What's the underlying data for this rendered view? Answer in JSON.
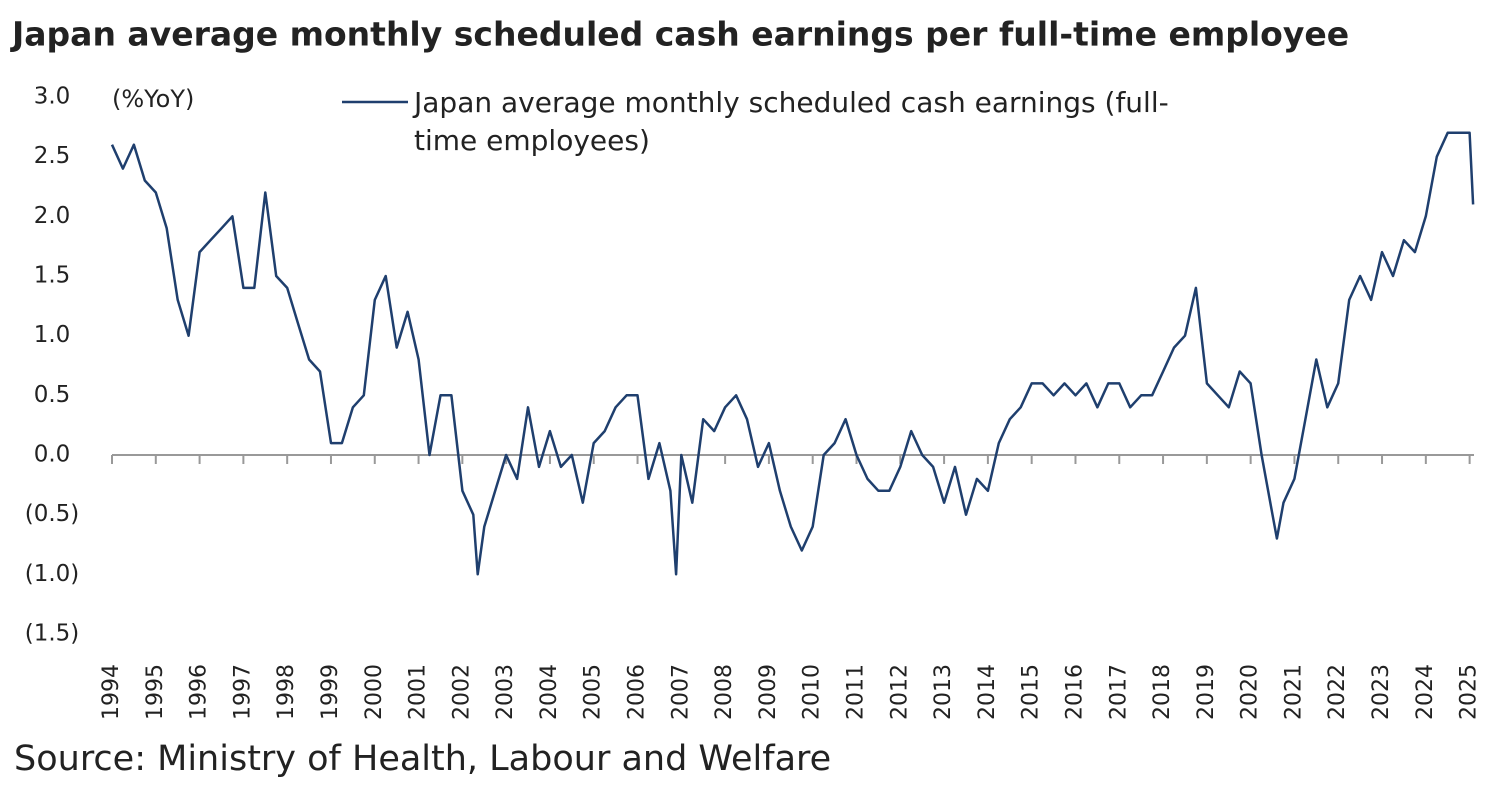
{
  "chart_data": {
    "type": "line",
    "title": "Japan average monthly scheduled cash earnings per full-time employee",
    "y_label": "(%YoY)",
    "source": "Source: Ministry of Health, Labour and Welfare",
    "x": [
      1994.0,
      1994.25,
      1994.5,
      1994.75,
      1995.0,
      1995.25,
      1995.5,
      1995.75,
      1996.0,
      1996.25,
      1996.5,
      1996.75,
      1997.0,
      1997.25,
      1997.5,
      1997.75,
      1998.0,
      1998.25,
      1998.5,
      1998.75,
      1999.0,
      1999.25,
      1999.5,
      1999.75,
      2000.0,
      2000.25,
      2000.5,
      2000.75,
      2001.0,
      2001.25,
      2001.5,
      2001.75,
      2002.0,
      2002.25,
      2002.35,
      2002.5,
      2002.75,
      2003.0,
      2003.25,
      2003.5,
      2003.75,
      2004.0,
      2004.25,
      2004.5,
      2004.75,
      2005.0,
      2005.25,
      2005.5,
      2005.75,
      2006.0,
      2006.25,
      2006.5,
      2006.75,
      2006.88,
      2007.0,
      2007.25,
      2007.5,
      2007.75,
      2008.0,
      2008.25,
      2008.5,
      2008.75,
      2009.0,
      2009.25,
      2009.5,
      2009.75,
      2010.0,
      2010.25,
      2010.5,
      2010.75,
      2011.0,
      2011.25,
      2011.5,
      2011.75,
      2012.0,
      2012.25,
      2012.5,
      2012.75,
      2013.0,
      2013.25,
      2013.5,
      2013.75,
      2014.0,
      2014.25,
      2014.5,
      2014.75,
      2015.0,
      2015.25,
      2015.5,
      2015.75,
      2016.0,
      2016.25,
      2016.5,
      2016.75,
      2017.0,
      2017.25,
      2017.5,
      2017.75,
      2018.0,
      2018.25,
      2018.5,
      2018.75,
      2019.0,
      2019.25,
      2019.5,
      2019.75,
      2020.0,
      2020.25,
      2020.5,
      2020.6,
      2020.75,
      2021.0,
      2021.25,
      2021.5,
      2021.75,
      2022.0,
      2022.25,
      2022.5,
      2022.75,
      2023.0,
      2023.25,
      2023.5,
      2023.75,
      2024.0,
      2024.25,
      2024.5,
      2024.75,
      2025.0,
      2025.08
    ],
    "series": [
      {
        "name": "Japan average monthly scheduled cash earnings (full-time employees)",
        "color": "#1f3f6e",
        "values": [
          2.6,
          2.4,
          2.6,
          2.3,
          2.2,
          1.9,
          1.3,
          1.0,
          1.7,
          1.8,
          1.9,
          2.0,
          1.4,
          1.4,
          2.2,
          1.5,
          1.4,
          1.1,
          0.8,
          0.7,
          0.1,
          0.1,
          0.4,
          0.5,
          1.3,
          1.5,
          0.9,
          1.2,
          0.8,
          0.0,
          0.5,
          0.5,
          -0.3,
          -0.5,
          -1.0,
          -0.6,
          -0.3,
          0.0,
          -0.2,
          0.4,
          -0.1,
          0.2,
          -0.1,
          0.0,
          -0.4,
          0.1,
          0.2,
          0.4,
          0.5,
          0.5,
          -0.2,
          0.1,
          -0.3,
          -1.0,
          0.0,
          -0.4,
          0.3,
          0.2,
          0.4,
          0.5,
          0.3,
          -0.1,
          0.1,
          -0.3,
          -0.6,
          -0.8,
          -0.6,
          0.0,
          0.1,
          0.3,
          0.0,
          -0.2,
          -0.3,
          -0.3,
          -0.1,
          0.2,
          0.0,
          -0.1,
          -0.4,
          -0.1,
          -0.5,
          -0.2,
          -0.3,
          0.1,
          0.3,
          0.4,
          0.6,
          0.6,
          0.5,
          0.6,
          0.5,
          0.6,
          0.4,
          0.6,
          0.6,
          0.4,
          0.5,
          0.5,
          0.7,
          0.9,
          1.0,
          1.4,
          0.6,
          0.5,
          0.4,
          0.7,
          0.6,
          0.0,
          -0.5,
          -0.7,
          -0.4,
          -0.2,
          0.3,
          0.8,
          0.4,
          0.6,
          1.3,
          1.5,
          1.3,
          1.7,
          1.5,
          1.8,
          1.7,
          2.0,
          2.5,
          2.7,
          2.7,
          2.7,
          2.1
        ]
      }
    ],
    "xlim": [
      1994,
      2025.1
    ],
    "xticks": [
      1994,
      1995,
      1996,
      1997,
      1998,
      1999,
      2000,
      2001,
      2002,
      2003,
      2004,
      2005,
      2006,
      2007,
      2008,
      2009,
      2010,
      2011,
      2012,
      2013,
      2014,
      2015,
      2016,
      2017,
      2018,
      2019,
      2020,
      2021,
      2022,
      2023,
      2024,
      2025
    ],
    "ylim": [
      -1.5,
      3.0
    ],
    "yticks": [
      {
        "value": -1.5,
        "label": "(1.5)"
      },
      {
        "value": -1,
        "label": "(1.0)"
      },
      {
        "value": -0.5,
        "label": "(0.5)"
      },
      {
        "value": 0,
        "label": "0.0"
      },
      0.5,
      {
        "value": 1,
        "label": "1.0"
      },
      1.5,
      {
        "value": 2,
        "label": "2.0"
      },
      2.5,
      {
        "value": 3,
        "label": "3.0"
      }
    ],
    "grid": false
  }
}
